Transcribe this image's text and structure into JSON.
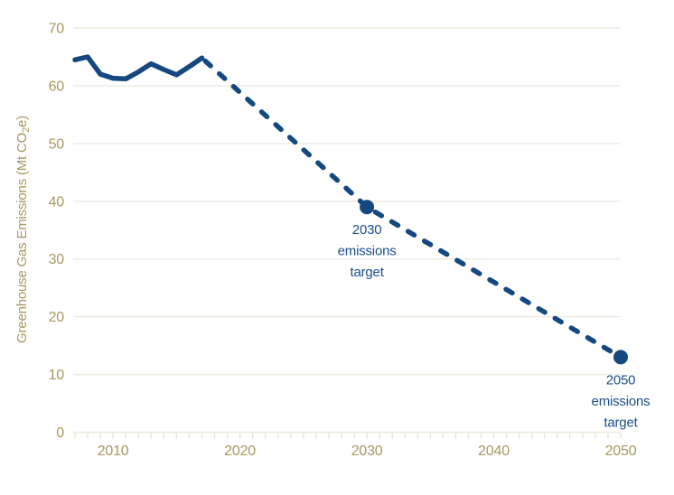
{
  "chart_data": {
    "type": "line",
    "title": "",
    "xlabel": "",
    "ylabel": "Greenhouse Gas Emissions (Mt CO₂e)",
    "ylabel_parts": {
      "pre": "Greenhouse Gas Emissions (Mt CO",
      "sub": "2",
      "post": "e)"
    },
    "xlim": [
      2006.8,
      2050
    ],
    "ylim": [
      0,
      70
    ],
    "grid": "horizontal",
    "legend": "none",
    "yticks": [
      "0",
      "10",
      "20",
      "30",
      "40",
      "50",
      "60",
      "70"
    ],
    "ytick_values": [
      0,
      10,
      20,
      30,
      40,
      50,
      60,
      70
    ],
    "xtick_labels": [
      "2010",
      "2020",
      "2030",
      "2040",
      "2050"
    ],
    "xtick_values": [
      2010,
      2020,
      2030,
      2040,
      2050
    ],
    "minor_xtick_start": 2007,
    "minor_xtick_end": 2050,
    "series": [
      {
        "name": "historical-emissions",
        "style": "solid",
        "x": [
          2007,
          2008,
          2009,
          2010,
          2011,
          2012,
          2013,
          2014,
          2015,
          2016,
          2017
        ],
        "values": [
          64.5,
          65.0,
          62.0,
          61.3,
          61.2,
          62.4,
          63.8,
          62.8,
          61.9,
          63.3,
          64.8
        ]
      },
      {
        "name": "projected-target-pathway",
        "style": "dashed",
        "x": [
          2017,
          2030,
          2050
        ],
        "values": [
          64.8,
          39,
          13
        ]
      }
    ],
    "annotations": [
      {
        "x": 2030,
        "value": 39,
        "marker": "circle",
        "label_lines": [
          "2030",
          "emissions",
          "target"
        ]
      },
      {
        "x": 2050,
        "value": 13,
        "marker": "circle",
        "label_lines": [
          "2050",
          "emissions",
          "target"
        ]
      }
    ],
    "colors": {
      "line_blue": "#14487F",
      "annotation_blue": "#1A4F8F",
      "axis_text_gold": "#A69960",
      "gridline": "#EEEAE0",
      "tick": "#E8E3D5",
      "background": "#FFFFFF"
    }
  }
}
